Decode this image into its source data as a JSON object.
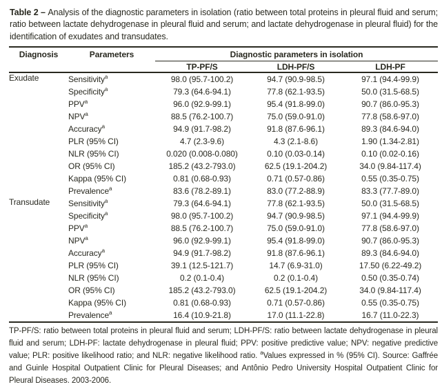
{
  "colors": {
    "text": "#28281f",
    "rule": "#28281f",
    "background": "#ffffff"
  },
  "title": {
    "segments": [
      {
        "text": "Table 2 – ",
        "bold": true
      },
      {
        "text": "Analysis of the diagnostic parameters in isolation (ratio between total proteins in pleural fluid and serum; ratio between lactate dehydrogenase in pleural fluid and serum; and lactate dehydrogenase in pleural fluid) for the identification of exudates and transudates.",
        "bold": false
      }
    ]
  },
  "table": {
    "headers": {
      "diagnosis": "Diagnosis",
      "parameters": "Parameters",
      "group_span": "Diagnostic parameters in isolation",
      "columns": [
        "TP-PF/S",
        "LDH-PF/S",
        "LDH-PF"
      ]
    },
    "groups": [
      {
        "diagnosis": "Exudate",
        "rows": [
          {
            "parameter": "Sensitivity",
            "marker": "a",
            "values": [
              "98.0 (95.7-100.2)",
              "94.7 (90.9-98.5)",
              "97.1 (94.4-99.9)"
            ]
          },
          {
            "parameter": "Specificity",
            "marker": "a",
            "values": [
              "79.3 (64.6-94.1)",
              "77.8 (62.1-93.5)",
              "50.0 (31.5-68.5)"
            ]
          },
          {
            "parameter": "PPV",
            "marker": "a",
            "values": [
              "96.0 (92.9-99.1)",
              "95.4 (91.8-99.0)",
              "90.7 (86.0-95.3)"
            ]
          },
          {
            "parameter": "NPV",
            "marker": "a",
            "values": [
              "88.5 (76.2-100.7)",
              "75.0 (59.0-91.0)",
              "77.8 (58.6-97.0)"
            ]
          },
          {
            "parameter": "Accuracy",
            "marker": "a",
            "values": [
              "94.9 (91.7-98.2)",
              "91.8 (87.6-96.1)",
              "89.3 (84.6-94.0)"
            ]
          },
          {
            "parameter": "PLR (95% CI)",
            "marker": "",
            "values": [
              "4.7 (2.3-9.6)",
              "4.3 (2.1-8.6)",
              "1.90 (1.34-2.81)"
            ]
          },
          {
            "parameter": "NLR (95% CI)",
            "marker": "",
            "values": [
              "0.020 (0.008-0.080)",
              "0.10 (0.03-0.14)",
              "0.10 (0.02-0.16)"
            ]
          },
          {
            "parameter": "OR (95% CI)",
            "marker": "",
            "values": [
              "185.2 (43.2-793.0)",
              "62.5 (19.1-204.2)",
              "34.0 (9.84-117.4)"
            ]
          },
          {
            "parameter": "Kappa (95% CI)",
            "marker": "",
            "values": [
              "0.81 (0.68-0.93)",
              "0.71 (0.57-0.86)",
              "0.55 (0.35-0.75)"
            ]
          },
          {
            "parameter": "Prevalence",
            "marker": "a",
            "values": [
              "83.6 (78.2-89.1)",
              "83.0 (77.2-88.9)",
              "83.3 (77.7-89.0)"
            ]
          }
        ]
      },
      {
        "diagnosis": "Transudate",
        "rows": [
          {
            "parameter": "Sensitivity",
            "marker": "a",
            "values": [
              "79.3 (64.6-94.1)",
              "77.8 (62.1-93.5)",
              "50.0 (31.5-68.5)"
            ]
          },
          {
            "parameter": "Specificity",
            "marker": "a",
            "values": [
              "98.0 (95.7-100.2)",
              "94.7 (90.9-98.5)",
              "97.1 (94.4-99.9)"
            ]
          },
          {
            "parameter": "PPV",
            "marker": "a",
            "values": [
              "88.5 (76.2-100.7)",
              "75.0 (59.0-91.0)",
              "77.8 (58.6-97.0)"
            ]
          },
          {
            "parameter": "NPV",
            "marker": "a",
            "values": [
              "96.0 (92.9-99.1)",
              "95.4 (91.8-99.0)",
              "90.7 (86.0-95.3)"
            ]
          },
          {
            "parameter": "Accuracy",
            "marker": "a",
            "values": [
              "94.9 (91.7-98.2)",
              "91.8 (87.6-96.1)",
              "89.3 (84.6-94.0)"
            ]
          },
          {
            "parameter": "PLR (95% CI)",
            "marker": "",
            "values": [
              "39.1 (12.5-121.7)",
              "14.7 (6.9-31.0)",
              "17.50 (6.22-49.2)"
            ]
          },
          {
            "parameter": "NLR (95% CI)",
            "marker": "",
            "values": [
              "0.2 (0.1-0.4)",
              "0.2 (0.1-0.4)",
              "0.50 (0.35-0.74)"
            ]
          },
          {
            "parameter": "OR (95% CI)",
            "marker": "",
            "values": [
              "185.2 (43.2-793.0)",
              "62.5 (19.1-204.2)",
              "34.0 (9.84-117.4)"
            ]
          },
          {
            "parameter": "Kappa (95% CI)",
            "marker": "",
            "values": [
              "0.81 (0.68-0.93)",
              "0.71 (0.57-0.86)",
              "0.55 (0.35-0.75)"
            ]
          },
          {
            "parameter": "Prevalence",
            "marker": "a",
            "values": [
              "16.4 (10.9-21.8)",
              "17.0 (11.1-22.8)",
              "16.7 (11.0-22.3)"
            ]
          }
        ]
      }
    ]
  },
  "footnote": {
    "segments": [
      {
        "text": "TP-PF/S: ratio between total proteins in pleural fluid and serum; LDH-PF/S: ratio between lactate dehydrogenase in pleural fluid and serum; LDH-PF: lactate dehydrogenase in pleural fluid; PPV: positive predictive value; NPV: negative predictive value; PLR: positive likelihood ratio; and NLR: negative likelihood ratio. ",
        "sup": false
      },
      {
        "text": "a",
        "sup": true
      },
      {
        "text": "Values expressed in % (95% CI). Source: Gaffrée and Guinle Hospital Outpatient Clinic for Pleural Diseases; and Antônio Pedro University Hospital Outpatient Clinic for Pleural Diseases. 2003-2006.",
        "sup": false
      }
    ]
  }
}
